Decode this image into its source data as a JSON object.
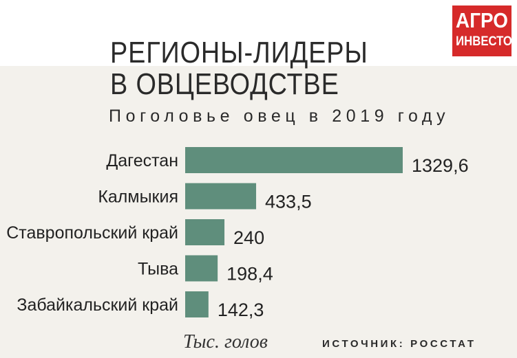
{
  "logo": {
    "line1": "АГРО",
    "line2": "ИНВЕСТОР"
  },
  "colors": {
    "bar": "#5f8e7c",
    "logo_bg": "#d62a2a",
    "background": "#f3f1ec"
  },
  "footer": {
    "unit": "Тыс. голов",
    "source": "ИСТОЧНИК: РОССТАТ"
  },
  "chart_data": {
    "type": "bar",
    "orientation": "horizontal",
    "title": "РЕГИОНЫ-ЛИДЕРЫ В ОВЦЕВОДСТВЕ",
    "title_lines": [
      "РЕГИОНЫ-ЛИДЕРЫ",
      "В ОВЦЕВОДСТВЕ"
    ],
    "subtitle": "Поголовье овец в 2019 году",
    "categories": [
      "Дагестан",
      "Калмыкия",
      "Ставропольский край",
      "Тыва",
      "Забайкальский край"
    ],
    "values": [
      1329.6,
      433.5,
      240,
      198.4,
      142.3
    ],
    "value_labels": [
      "1329,6",
      "433,5",
      "240",
      "198,4",
      "142,3"
    ],
    "unit": "Тыс. голов",
    "source": "ИСТОЧНИК: РОССТАТ",
    "grid": false,
    "legend": "none"
  }
}
